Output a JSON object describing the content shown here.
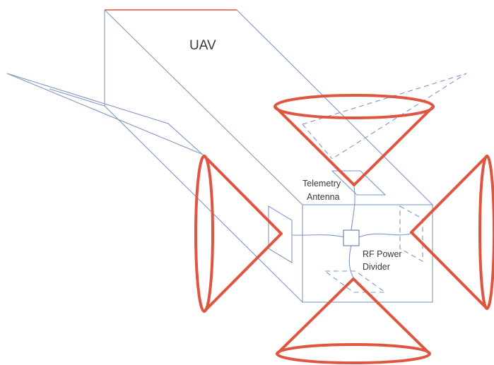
{
  "labels": {
    "uav": "UAV",
    "telemetry_line1": "Telemetry",
    "telemetry_line2": "Antenna",
    "divider_line1": "RF Power",
    "divider_line2": "Divider"
  },
  "colors": {
    "horn": "#e0553f",
    "structure": "#7f97c4",
    "text": "#3a3a3a"
  }
}
